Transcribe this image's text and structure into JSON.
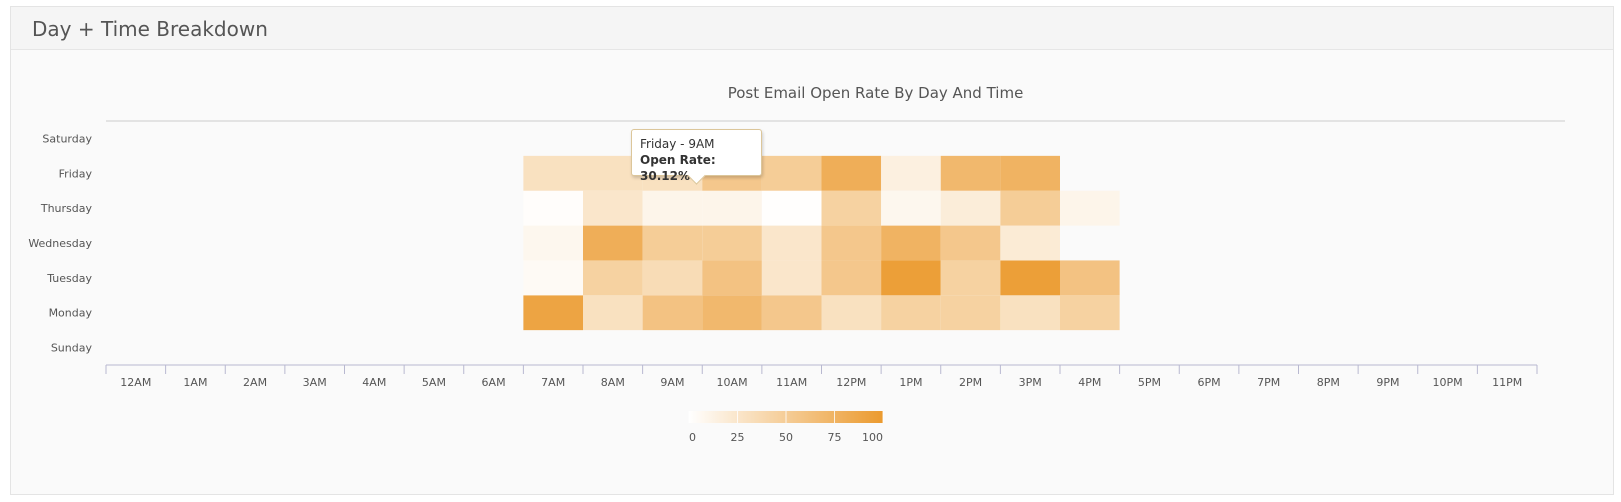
{
  "panel": {
    "title": "Day + Time Breakdown"
  },
  "chart_data": {
    "type": "heatmap",
    "title": "Post Email Open Rate By Day And Time",
    "x_categories": [
      "12AM",
      "1AM",
      "2AM",
      "3AM",
      "4AM",
      "5AM",
      "6AM",
      "7AM",
      "8AM",
      "9AM",
      "10AM",
      "11AM",
      "12PM",
      "1PM",
      "2PM",
      "3PM",
      "4PM",
      "5PM",
      "6PM",
      "7PM",
      "8PM",
      "9PM",
      "10PM",
      "11PM"
    ],
    "y_categories": [
      "Sunday",
      "Monday",
      "Tuesday",
      "Wednesday",
      "Thursday",
      "Friday",
      "Saturday"
    ],
    "value_label": "Open Rate",
    "color_min": "#ffffff",
    "color_max": "#eb9a2e",
    "color_axis": {
      "min": 0,
      "max": 100,
      "ticks": [
        0,
        25,
        50,
        75,
        100
      ]
    },
    "cells": [
      {
        "day": "Monday",
        "hour": "7AM",
        "value": 90
      },
      {
        "day": "Monday",
        "hour": "8AM",
        "value": 30
      },
      {
        "day": "Monday",
        "hour": "9AM",
        "value": 60
      },
      {
        "day": "Monday",
        "hour": "10AM",
        "value": 70
      },
      {
        "day": "Monday",
        "hour": "11AM",
        "value": 55
      },
      {
        "day": "Monday",
        "hour": "12PM",
        "value": 30
      },
      {
        "day": "Monday",
        "hour": "1PM",
        "value": 45
      },
      {
        "day": "Monday",
        "hour": "2PM",
        "value": 45
      },
      {
        "day": "Monday",
        "hour": "3PM",
        "value": 30
      },
      {
        "day": "Monday",
        "hour": "4PM",
        "value": 45
      },
      {
        "day": "Tuesday",
        "hour": "7AM",
        "value": 5
      },
      {
        "day": "Tuesday",
        "hour": "8AM",
        "value": 45
      },
      {
        "day": "Tuesday",
        "hour": "9AM",
        "value": 35
      },
      {
        "day": "Tuesday",
        "hour": "10AM",
        "value": 60
      },
      {
        "day": "Tuesday",
        "hour": "11AM",
        "value": 25
      },
      {
        "day": "Tuesday",
        "hour": "12PM",
        "value": 55
      },
      {
        "day": "Tuesday",
        "hour": "1PM",
        "value": 95
      },
      {
        "day": "Tuesday",
        "hour": "2PM",
        "value": 45
      },
      {
        "day": "Tuesday",
        "hour": "3PM",
        "value": 95
      },
      {
        "day": "Tuesday",
        "hour": "4PM",
        "value": 60
      },
      {
        "day": "Wednesday",
        "hour": "7AM",
        "value": 8
      },
      {
        "day": "Wednesday",
        "hour": "8AM",
        "value": 80
      },
      {
        "day": "Wednesday",
        "hour": "9AM",
        "value": 50
      },
      {
        "day": "Wednesday",
        "hour": "10AM",
        "value": 50
      },
      {
        "day": "Wednesday",
        "hour": "11AM",
        "value": 25
      },
      {
        "day": "Wednesday",
        "hour": "12PM",
        "value": 55
      },
      {
        "day": "Wednesday",
        "hour": "1PM",
        "value": 75
      },
      {
        "day": "Wednesday",
        "hour": "2PM",
        "value": 55
      },
      {
        "day": "Wednesday",
        "hour": "3PM",
        "value": 20
      },
      {
        "day": "Thursday",
        "hour": "7AM",
        "value": 2
      },
      {
        "day": "Thursday",
        "hour": "8AM",
        "value": 25
      },
      {
        "day": "Thursday",
        "hour": "9AM",
        "value": 10
      },
      {
        "day": "Thursday",
        "hour": "10AM",
        "value": 10
      },
      {
        "day": "Thursday",
        "hour": "11AM",
        "value": 1
      },
      {
        "day": "Thursday",
        "hour": "12PM",
        "value": 45
      },
      {
        "day": "Thursday",
        "hour": "1PM",
        "value": 8
      },
      {
        "day": "Thursday",
        "hour": "2PM",
        "value": 18
      },
      {
        "day": "Thursday",
        "hour": "3PM",
        "value": 50
      },
      {
        "day": "Thursday",
        "hour": "4PM",
        "value": 10
      },
      {
        "day": "Friday",
        "hour": "7AM",
        "value": 30
      },
      {
        "day": "Friday",
        "hour": "8AM",
        "value": 30
      },
      {
        "day": "Friday",
        "hour": "9AM",
        "value": 30.12
      },
      {
        "day": "Friday",
        "hour": "10AM",
        "value": 55
      },
      {
        "day": "Friday",
        "hour": "11AM",
        "value": 50
      },
      {
        "day": "Friday",
        "hour": "12PM",
        "value": 80
      },
      {
        "day": "Friday",
        "hour": "1PM",
        "value": 15
      },
      {
        "day": "Friday",
        "hour": "2PM",
        "value": 70
      },
      {
        "day": "Friday",
        "hour": "3PM",
        "value": 75
      }
    ],
    "tooltip": {
      "header": "Friday - 9AM",
      "label": "Open Rate:",
      "value": "30.12%"
    }
  }
}
